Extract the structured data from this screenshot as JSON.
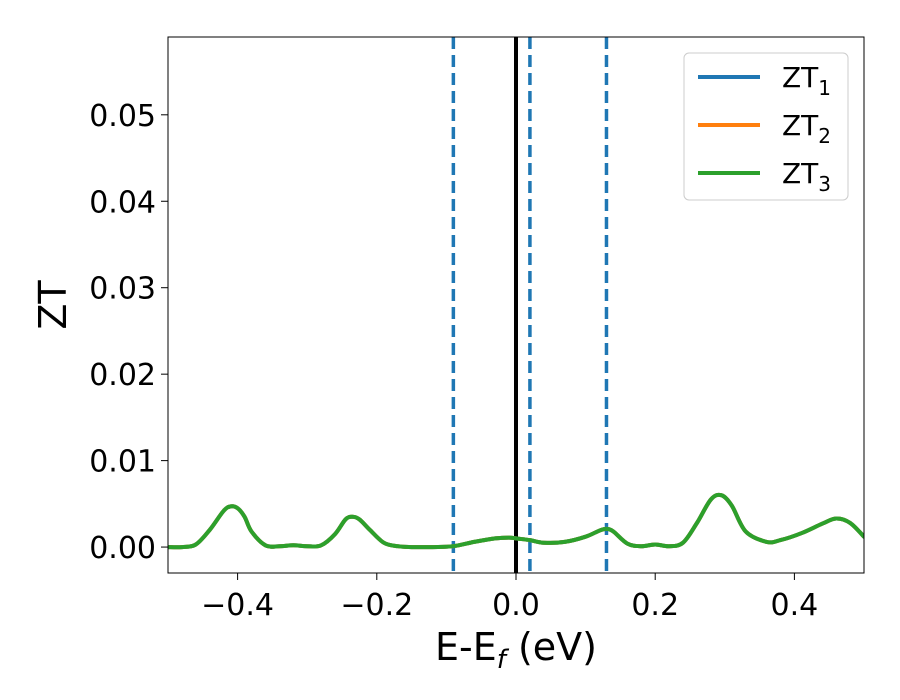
{
  "chart_data": {
    "type": "line",
    "xlabel": {
      "main": "E-E",
      "sub": "f",
      "unit": " (eV)"
    },
    "ylabel": "ZT",
    "xlim": [
      -0.5,
      0.5
    ],
    "ylim": [
      -0.003,
      0.059
    ],
    "x_ticks": [
      -0.4,
      -0.2,
      0.0,
      0.2,
      0.4
    ],
    "x_tick_labels": [
      "−0.4",
      "−0.2",
      "0.0",
      "0.2",
      "0.4"
    ],
    "y_ticks": [
      0.0,
      0.01,
      0.02,
      0.03,
      0.04,
      0.05
    ],
    "y_tick_labels": [
      "0.00",
      "0.01",
      "0.02",
      "0.03",
      "0.04",
      "0.05"
    ],
    "grid": false,
    "legend_position": "top-right",
    "series": [
      {
        "name": "ZT",
        "sub": "1",
        "color": "#1f77b4",
        "x": [
          -0.5,
          -0.48,
          -0.46,
          -0.44,
          -0.42,
          -0.41,
          -0.4,
          -0.39,
          -0.38,
          -0.36,
          -0.34,
          -0.32,
          -0.3,
          -0.28,
          -0.26,
          -0.245,
          -0.235,
          -0.225,
          -0.21,
          -0.19,
          -0.17,
          -0.15,
          -0.12,
          -0.09,
          -0.06,
          -0.03,
          -0.01,
          0.0,
          0.02,
          0.04,
          0.07,
          0.1,
          0.12,
          0.13,
          0.14,
          0.16,
          0.18,
          0.2,
          0.22,
          0.24,
          0.26,
          0.28,
          0.295,
          0.31,
          0.33,
          0.36,
          0.38,
          0.41,
          0.44,
          0.46,
          0.48,
          0.5
        ],
        "values": [
          0.0,
          0.0,
          0.0003,
          0.002,
          0.0042,
          0.0047,
          0.0045,
          0.0035,
          0.0018,
          0.0002,
          0.0001,
          0.0002,
          0.0001,
          0.0002,
          0.0015,
          0.0032,
          0.0035,
          0.0032,
          0.002,
          0.0005,
          0.0001,
          0.0,
          0.0,
          0.0001,
          0.0006,
          0.001,
          0.0011,
          0.001,
          0.0008,
          0.0005,
          0.0006,
          0.0012,
          0.0019,
          0.0021,
          0.0018,
          0.0004,
          0.0001,
          0.0003,
          0.0001,
          0.0005,
          0.0028,
          0.0055,
          0.006,
          0.0048,
          0.0018,
          0.0006,
          0.0008,
          0.0016,
          0.0027,
          0.0033,
          0.0028,
          0.0012
        ]
      },
      {
        "name": "ZT",
        "sub": "2",
        "color": "#ff7f0e",
        "x": [
          -0.5,
          -0.48,
          -0.46,
          -0.44,
          -0.42,
          -0.41,
          -0.4,
          -0.39,
          -0.38,
          -0.36,
          -0.34,
          -0.32,
          -0.3,
          -0.28,
          -0.26,
          -0.245,
          -0.235,
          -0.225,
          -0.21,
          -0.19,
          -0.17,
          -0.15,
          -0.12,
          -0.09,
          -0.06,
          -0.03,
          -0.01,
          0.0,
          0.02,
          0.04,
          0.07,
          0.1,
          0.12,
          0.13,
          0.14,
          0.16,
          0.18,
          0.2,
          0.22,
          0.24,
          0.26,
          0.28,
          0.295,
          0.31,
          0.33,
          0.36,
          0.38,
          0.41,
          0.44,
          0.46,
          0.48,
          0.5
        ],
        "values": [
          0.0,
          0.0,
          0.0003,
          0.002,
          0.0042,
          0.0047,
          0.0045,
          0.0035,
          0.0018,
          0.0002,
          0.0001,
          0.0002,
          0.0001,
          0.0002,
          0.0015,
          0.0032,
          0.0035,
          0.0032,
          0.002,
          0.0005,
          0.0001,
          0.0,
          0.0,
          0.0001,
          0.0006,
          0.001,
          0.0011,
          0.001,
          0.0008,
          0.0005,
          0.0006,
          0.0012,
          0.0019,
          0.0021,
          0.0018,
          0.0004,
          0.0001,
          0.0003,
          0.0001,
          0.0005,
          0.0028,
          0.0055,
          0.006,
          0.0048,
          0.0018,
          0.0006,
          0.0008,
          0.0016,
          0.0027,
          0.0033,
          0.0028,
          0.0012
        ]
      },
      {
        "name": "ZT",
        "sub": "3",
        "color": "#2ca02c",
        "x": [
          -0.5,
          -0.48,
          -0.46,
          -0.44,
          -0.42,
          -0.41,
          -0.4,
          -0.39,
          -0.38,
          -0.36,
          -0.34,
          -0.32,
          -0.3,
          -0.28,
          -0.26,
          -0.245,
          -0.235,
          -0.225,
          -0.21,
          -0.19,
          -0.17,
          -0.15,
          -0.12,
          -0.09,
          -0.06,
          -0.03,
          -0.01,
          0.0,
          0.02,
          0.04,
          0.07,
          0.1,
          0.12,
          0.13,
          0.14,
          0.16,
          0.18,
          0.2,
          0.22,
          0.24,
          0.26,
          0.28,
          0.295,
          0.31,
          0.33,
          0.36,
          0.38,
          0.41,
          0.44,
          0.46,
          0.48,
          0.5
        ],
        "values": [
          0.0,
          0.0,
          0.0003,
          0.002,
          0.0042,
          0.0047,
          0.0045,
          0.0035,
          0.0018,
          0.0002,
          0.0001,
          0.0002,
          0.0001,
          0.0002,
          0.0015,
          0.0032,
          0.0035,
          0.0032,
          0.002,
          0.0005,
          0.0001,
          0.0,
          0.0,
          0.0001,
          0.0006,
          0.001,
          0.0011,
          0.001,
          0.0008,
          0.0005,
          0.0006,
          0.0012,
          0.0019,
          0.0021,
          0.0018,
          0.0004,
          0.0001,
          0.0003,
          0.0001,
          0.0005,
          0.0028,
          0.0055,
          0.006,
          0.0048,
          0.0018,
          0.0006,
          0.0008,
          0.0016,
          0.0027,
          0.0033,
          0.0028,
          0.0012
        ]
      }
    ],
    "vertical_lines": [
      {
        "x": 0.0,
        "style": "solid",
        "color": "#000000"
      },
      {
        "x": -0.09,
        "style": "dashed",
        "color": "#1f77b4"
      },
      {
        "x": 0.02,
        "style": "dashed",
        "color": "#1f77b4"
      },
      {
        "x": 0.13,
        "style": "dashed",
        "color": "#1f77b4"
      }
    ]
  }
}
